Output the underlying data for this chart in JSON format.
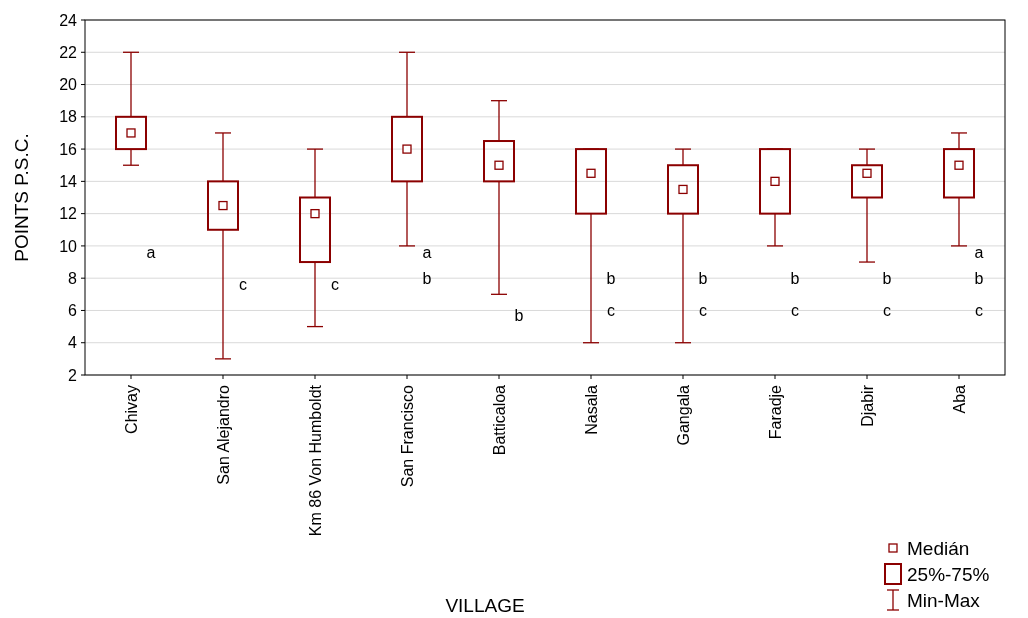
{
  "chart_data": {
    "type": "box",
    "xlabel": "VILLAGE",
    "ylabel": "POINTS P.S.C.",
    "categories": [
      "Chivay",
      "San Alejandro",
      "Km 86 Von Humboldt",
      "San Francisco",
      "Batticaloa",
      "Nasala",
      "Gangala",
      "Faradje",
      "Djabir",
      "Aba"
    ],
    "color": "#8b0000",
    "boxes": [
      {
        "low": 15,
        "q1": 16,
        "median": 17,
        "q3": 18,
        "high": 22
      },
      {
        "low": 3,
        "q1": 11,
        "median": 12.5,
        "q3": 14,
        "high": 17
      },
      {
        "low": 5,
        "q1": 9,
        "median": 12,
        "q3": 13,
        "high": 16
      },
      {
        "low": 10,
        "q1": 14,
        "median": 16,
        "q3": 18,
        "high": 22
      },
      {
        "low": 7,
        "q1": 14,
        "median": 15,
        "q3": 16.5,
        "high": 19
      },
      {
        "low": 4,
        "q1": 12,
        "median": 14.5,
        "q3": 16,
        "high": 16
      },
      {
        "low": 4,
        "q1": 12,
        "median": 13.5,
        "q3": 15,
        "high": 16
      },
      {
        "low": 10,
        "q1": 12,
        "median": 14,
        "q3": 16,
        "high": 16
      },
      {
        "low": 9,
        "q1": 13,
        "median": 14.5,
        "q3": 15,
        "high": 16
      },
      {
        "low": 10,
        "q1": 13,
        "median": 15,
        "q3": 16,
        "high": 17
      }
    ],
    "value_labels": [
      "a",
      "c",
      "c",
      "a b",
      "b",
      "b c",
      "b c",
      "b c",
      "b c",
      "a b c"
    ],
    "ylim": [
      2,
      24
    ],
    "yticks": [
      2,
      4,
      6,
      8,
      10,
      12,
      14,
      16,
      18,
      20,
      22,
      24
    ],
    "grid": "y",
    "annotations": [
      "Medián",
      "25%-75%",
      "Min-Max"
    ]
  }
}
